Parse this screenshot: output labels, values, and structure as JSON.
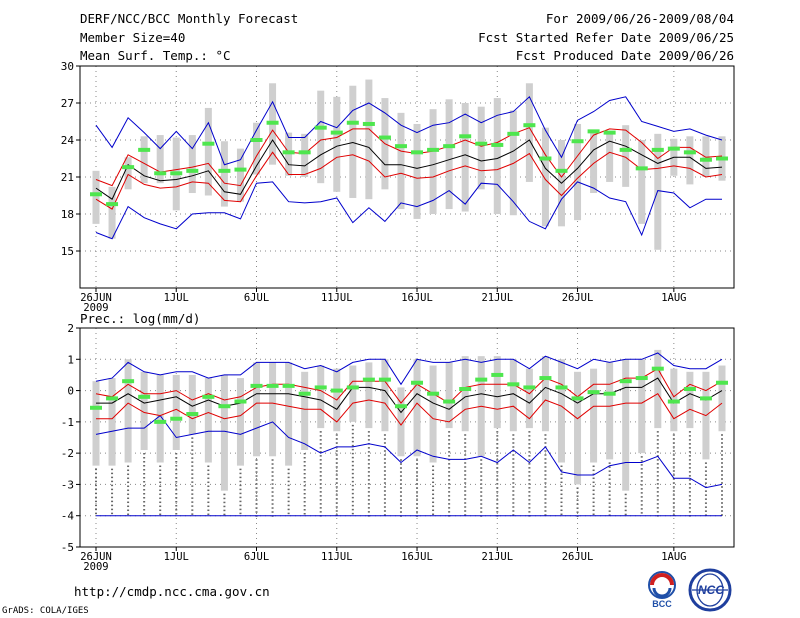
{
  "header": {
    "line1_left": "DERF/NCC/BCC Monthly Forecast",
    "line2_left": "Member Size=40",
    "line3_left": "Mean Surf. Temp.: °C",
    "line1_right": "For 2009/06/26-2009/08/04",
    "line2_right": "Fcst Started Refer Date 2009/06/25",
    "line3_right": "Fcst Produced Date 2009/06/26"
  },
  "footer": {
    "url": "http://cmdp.ncc.cma.gov.cn",
    "credit": "GrADS: COLA/IGES",
    "logo_left_text": "BCC",
    "logo_right_text": "NCC"
  },
  "colors": {
    "box": "#cfcfcf",
    "median": "#4ee64e",
    "mean": "#000000",
    "sd": "#e00000",
    "extreme": "#0000cc"
  },
  "chart_data": [
    {
      "type": "line",
      "name": "temperature",
      "title": "Mean Surf. Temp.: °C",
      "xlabel": "",
      "ylabel": "",
      "ylim": [
        12,
        30
      ],
      "yticks": [
        15,
        18,
        21,
        24,
        27,
        30
      ],
      "xticks": [
        {
          "day": 0,
          "label": "26JUN",
          "sub": "2009"
        },
        {
          "day": 5,
          "label": "1JUL"
        },
        {
          "day": 10,
          "label": "6JUL"
        },
        {
          "day": 15,
          "label": "11JUL"
        },
        {
          "day": 20,
          "label": "16JUL"
        },
        {
          "day": 25,
          "label": "21JUL"
        },
        {
          "day": 30,
          "label": "26JUL"
        },
        {
          "day": 36,
          "label": "1AUG"
        }
      ],
      "x": [
        0,
        1,
        2,
        3,
        4,
        5,
        6,
        7,
        8,
        9,
        10,
        11,
        12,
        13,
        14,
        15,
        16,
        17,
        18,
        19,
        20,
        21,
        22,
        23,
        24,
        25,
        26,
        27,
        28,
        29,
        30,
        31,
        32,
        33,
        34,
        35,
        36,
        37,
        38,
        39
      ],
      "series": [
        {
          "name": "max",
          "values": [
            25.2,
            23.4,
            25.8,
            24.6,
            23.3,
            24.7,
            23.3,
            25.4,
            22.0,
            22.4,
            24.8,
            27.1,
            24.2,
            24.2,
            25.5,
            25.0,
            26.4,
            27.0,
            26.2,
            25.2,
            24.6,
            25.2,
            25.4,
            26.1,
            25.4,
            26.0,
            26.3,
            27.5,
            24.8,
            22.6,
            25.6,
            26.3,
            27.2,
            27.5,
            25.5,
            25.1,
            24.7,
            24.9,
            24.4,
            24.0
          ]
        },
        {
          "name": "mean_plus_sd",
          "values": [
            20.8,
            20.3,
            22.8,
            22.1,
            21.4,
            21.6,
            21.8,
            22.1,
            20.5,
            20.3,
            22.7,
            24.8,
            23.0,
            22.9,
            24.0,
            24.2,
            24.9,
            24.9,
            23.7,
            23.1,
            22.9,
            23.1,
            23.5,
            24.0,
            23.5,
            23.8,
            24.5,
            25.0,
            22.8,
            21.0,
            22.7,
            24.4,
            24.9,
            24.8,
            23.8,
            22.5,
            23.4,
            23.4,
            22.6,
            22.7
          ]
        },
        {
          "name": "mean",
          "values": [
            20.1,
            19.2,
            22.0,
            21.1,
            20.7,
            20.8,
            21.1,
            21.5,
            19.8,
            19.6,
            21.9,
            24.0,
            22.0,
            21.9,
            22.8,
            23.5,
            23.8,
            23.4,
            22.0,
            22.0,
            21.7,
            22.0,
            22.4,
            22.8,
            22.3,
            22.5,
            23.1,
            24.0,
            21.7,
            20.5,
            21.7,
            23.2,
            23.9,
            23.5,
            22.8,
            22.1,
            22.6,
            22.6,
            21.7,
            21.8
          ]
        },
        {
          "name": "mean_minus_sd",
          "values": [
            19.2,
            18.4,
            21.2,
            20.4,
            20.1,
            20.2,
            20.6,
            20.5,
            19.1,
            19.0,
            21.1,
            23.0,
            21.2,
            21.2,
            21.7,
            22.6,
            22.8,
            22.3,
            21.0,
            21.3,
            20.9,
            21.0,
            21.5,
            21.9,
            21.5,
            21.6,
            22.1,
            22.9,
            20.8,
            19.5,
            20.9,
            22.1,
            23.0,
            22.6,
            21.6,
            21.7,
            21.9,
            21.7,
            21.0,
            21.2
          ]
        },
        {
          "name": "min",
          "values": [
            16.5,
            16.0,
            18.6,
            17.7,
            17.2,
            16.8,
            18.0,
            18.1,
            18.1,
            17.6,
            20.5,
            20.6,
            19.0,
            18.9,
            19.0,
            19.3,
            17.3,
            18.5,
            17.4,
            18.9,
            18.6,
            19.1,
            19.9,
            18.8,
            20.5,
            20.4,
            19.0,
            17.4,
            16.8,
            19.2,
            20.6,
            20.1,
            19.3,
            19.0,
            16.3,
            19.9,
            19.7,
            18.5,
            19.2,
            19.2
          ]
        },
        {
          "name": "median",
          "values": [
            19.6,
            18.8,
            21.8,
            23.2,
            21.3,
            21.3,
            21.5,
            23.7,
            21.5,
            21.6,
            24.0,
            25.4,
            23.0,
            23.0,
            25.0,
            24.6,
            25.4,
            25.3,
            24.2,
            23.5,
            23.0,
            23.2,
            23.5,
            24.3,
            23.7,
            23.6,
            24.5,
            25.2,
            22.5,
            21.5,
            23.9,
            24.7,
            24.6,
            23.2,
            21.7,
            23.2,
            23.3,
            23.0,
            22.4,
            22.5
          ]
        },
        {
          "name": "box_low",
          "values": [
            17.2,
            16.0,
            20.0,
            20.5,
            20.5,
            18.3,
            19.7,
            19.5,
            18.6,
            19.0,
            21.2,
            22.0,
            21.1,
            21.0,
            20.5,
            19.8,
            19.3,
            19.2,
            20.0,
            18.4,
            17.6,
            18.0,
            18.4,
            18.2,
            20.0,
            18.0,
            17.9,
            20.6,
            17.0,
            17.0,
            17.5,
            19.7,
            20.6,
            20.2,
            17.2,
            15.1,
            21.1,
            20.4,
            21.0,
            20.7
          ]
        },
        {
          "name": "box_high",
          "values": [
            21.5,
            20.2,
            22.6,
            24.3,
            24.4,
            24.2,
            24.4,
            26.6,
            23.9,
            23.3,
            25.4,
            28.6,
            24.6,
            24.5,
            28.0,
            27.5,
            28.4,
            28.9,
            27.4,
            26.2,
            25.3,
            26.5,
            27.3,
            27.0,
            26.7,
            27.4,
            26.4,
            28.6,
            25.0,
            24.0,
            25.3,
            24.6,
            24.6,
            25.2,
            24.0,
            24.5,
            24.1,
            24.3,
            24.3,
            24.3
          ]
        }
      ]
    },
    {
      "type": "line",
      "name": "precipitation",
      "title": "Prec.: log(mm/d)",
      "xlabel": "",
      "ylabel": "",
      "ylim": [
        -5,
        2
      ],
      "yticks": [
        -5,
        -4,
        -3,
        -2,
        -1,
        0,
        1,
        2
      ],
      "xticks": [
        {
          "day": 0,
          "label": "26JUN",
          "sub": "2009"
        },
        {
          "day": 5,
          "label": "1JUL"
        },
        {
          "day": 10,
          "label": "6JUL"
        },
        {
          "day": 15,
          "label": "11JUL"
        },
        {
          "day": 20,
          "label": "16JUL"
        },
        {
          "day": 25,
          "label": "21JUL"
        },
        {
          "day": 30,
          "label": "26JUL"
        },
        {
          "day": 36,
          "label": "1AUG"
        }
      ],
      "x": [
        0,
        1,
        2,
        3,
        4,
        5,
        6,
        7,
        8,
        9,
        10,
        11,
        12,
        13,
        14,
        15,
        16,
        17,
        18,
        19,
        20,
        21,
        22,
        23,
        24,
        25,
        26,
        27,
        28,
        29,
        30,
        31,
        32,
        33,
        34,
        35,
        36,
        37,
        38,
        39
      ],
      "series": [
        {
          "name": "max",
          "values": [
            0.3,
            0.4,
            0.9,
            0.6,
            0.5,
            0.6,
            0.6,
            0.4,
            0.5,
            0.5,
            0.9,
            0.9,
            0.9,
            0.7,
            0.8,
            0.6,
            0.9,
            1.0,
            1.0,
            0.2,
            1.0,
            0.9,
            0.9,
            1.0,
            0.9,
            1.0,
            1.0,
            0.7,
            1.1,
            0.9,
            0.7,
            1.0,
            0.9,
            1.0,
            1.0,
            1.2,
            0.8,
            0.7,
            0.7,
            1.0
          ]
        },
        {
          "name": "mean_plus_sd",
          "values": [
            -0.1,
            -0.2,
            0.2,
            -0.1,
            -0.1,
            0.0,
            -0.3,
            -0.1,
            -0.3,
            -0.2,
            0.1,
            0.2,
            0.2,
            0.1,
            0.0,
            -0.3,
            0.3,
            0.3,
            0.3,
            -0.4,
            0.2,
            -0.1,
            -0.4,
            0.1,
            0.2,
            0.2,
            0.2,
            -0.1,
            0.4,
            0.2,
            -0.2,
            0.2,
            0.2,
            0.4,
            0.4,
            0.7,
            -0.2,
            0.2,
            0.0,
            0.3
          ]
        },
        {
          "name": "mean",
          "values": [
            -0.4,
            -0.4,
            -0.1,
            -0.4,
            -0.3,
            -0.2,
            -0.5,
            -0.3,
            -0.5,
            -0.4,
            -0.1,
            -0.1,
            -0.1,
            -0.2,
            -0.3,
            -0.6,
            0.1,
            0.1,
            0.0,
            -0.7,
            -0.1,
            -0.4,
            -0.6,
            -0.2,
            -0.1,
            -0.2,
            -0.1,
            -0.4,
            0.1,
            -0.1,
            -0.4,
            -0.1,
            -0.1,
            0.1,
            0.1,
            0.4,
            -0.4,
            -0.1,
            -0.3,
            0.0
          ]
        },
        {
          "name": "mean_minus_sd",
          "values": [
            -0.9,
            -0.9,
            -0.4,
            -0.7,
            -0.8,
            -0.6,
            -0.9,
            -0.7,
            -0.9,
            -0.8,
            -0.4,
            -0.4,
            -0.5,
            -0.6,
            -0.6,
            -1.0,
            -0.4,
            -0.3,
            -0.4,
            -1.1,
            -0.4,
            -0.9,
            -1.0,
            -0.6,
            -0.5,
            -0.6,
            -0.5,
            -0.9,
            -0.3,
            -0.5,
            -0.9,
            -0.5,
            -0.5,
            -0.4,
            -0.4,
            -0.1,
            -0.9,
            -0.6,
            -0.8,
            -0.4
          ]
        },
        {
          "name": "min",
          "values": [
            -1.4,
            -1.3,
            -1.2,
            -1.2,
            -0.8,
            -1.5,
            -1.4,
            -1.3,
            -1.3,
            -1.4,
            -1.2,
            -1.0,
            -1.5,
            -1.7,
            -2.0,
            -1.8,
            -1.8,
            -1.7,
            -1.8,
            -2.3,
            -1.9,
            -2.1,
            -2.2,
            -2.2,
            -2.1,
            -2.3,
            -1.9,
            -2.3,
            -1.8,
            -2.6,
            -2.7,
            -2.7,
            -2.4,
            -2.3,
            -2.3,
            -2.1,
            -2.8,
            -2.8,
            -3.1,
            -3.0
          ]
        },
        {
          "name": "median",
          "values": [
            -0.55,
            -0.25,
            0.3,
            -0.2,
            -1.0,
            -0.9,
            -0.75,
            -0.2,
            -0.5,
            -0.35,
            0.15,
            0.15,
            0.15,
            -0.1,
            0.1,
            0.0,
            0.1,
            0.35,
            0.35,
            -0.5,
            0.25,
            -0.1,
            -0.35,
            0.05,
            0.35,
            0.5,
            0.2,
            0.1,
            0.4,
            0.1,
            -0.25,
            -0.05,
            -0.1,
            0.3,
            0.4,
            0.7,
            -0.35,
            0.05,
            -0.25,
            0.25
          ]
        },
        {
          "name": "box_low",
          "values": [
            -2.4,
            -2.4,
            -2.3,
            -1.9,
            -2.3,
            -1.9,
            -1.4,
            -2.3,
            -3.2,
            -2.4,
            -2.1,
            -2.1,
            -2.4,
            -1.9,
            -1.2,
            -1.3,
            -1.0,
            -1.2,
            -1.3,
            -2.1,
            -2.1,
            -2.3,
            -1.2,
            -1.3,
            -2.1,
            -1.2,
            -1.3,
            -1.2,
            -1.3,
            -2.3,
            -3.0,
            -2.3,
            -2.2,
            -3.2,
            -2.0,
            -1.2,
            -1.3,
            -1.2,
            -2.2,
            -1.3
          ]
        },
        {
          "name": "box_high",
          "values": [
            0.3,
            0.4,
            1.0,
            0.6,
            0.5,
            0.5,
            0.5,
            0.4,
            0.5,
            0.4,
            0.9,
            0.9,
            0.9,
            0.6,
            0.8,
            0.7,
            0.8,
            0.9,
            1.0,
            0.1,
            1.0,
            0.8,
            0.9,
            1.1,
            1.1,
            1.1,
            1.0,
            0.7,
            1.1,
            1.0,
            0.6,
            0.7,
            0.9,
            1.0,
            1.0,
            1.3,
            0.7,
            0.6,
            0.6,
            0.8
          ]
        },
        {
          "name": "dry_floor",
          "values": [
            -4,
            -4,
            -4,
            -4,
            -4,
            -4,
            -4,
            -4,
            -4,
            -4,
            -4,
            -4,
            -4,
            -4,
            -4,
            -4,
            -4,
            -4,
            -4,
            -4,
            -4,
            -4,
            -4,
            -4,
            -4,
            -4,
            -4,
            -4,
            -4,
            -4,
            -4,
            -4,
            -4,
            -4,
            -4,
            -4,
            -4,
            -4,
            -4,
            -4
          ]
        }
      ]
    }
  ]
}
